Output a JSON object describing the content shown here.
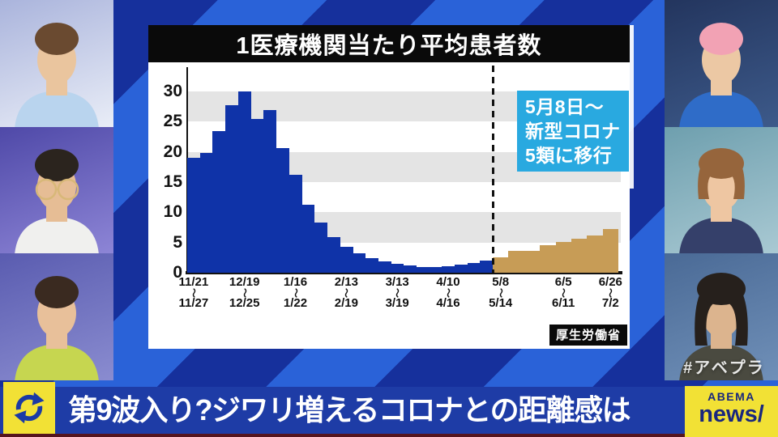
{
  "chart_data": {
    "type": "bar",
    "title": "1医療機関当たり平均患者数",
    "source": "厚生労働省",
    "ylim": [
      0,
      32.4
    ],
    "yticks": [
      0,
      5,
      10,
      15,
      20,
      25,
      30
    ],
    "gray_bands": [
      [
        5,
        10
      ],
      [
        15,
        20
      ],
      [
        25,
        30
      ]
    ],
    "values": [
      19.0,
      19.8,
      23.4,
      27.7,
      30.0,
      25.5,
      26.9,
      20.6,
      16.2,
      11.2,
      8.3,
      5.9,
      4.3,
      3.2,
      2.4,
      1.9,
      1.5,
      1.2,
      1.0,
      1.0,
      1.1,
      1.3,
      1.6,
      2.0,
      2.6,
      3.6,
      3.6,
      4.6,
      5.1,
      5.6,
      6.1,
      7.2
    ],
    "split_index": 24,
    "colors": {
      "before_may8": "#0f33a8",
      "after_may8": "#c79c56"
    },
    "x_ticks": [
      {
        "index": 0,
        "top": "11/21",
        "bottom": "11/27"
      },
      {
        "index": 4,
        "top": "12/19",
        "bottom": "12/25"
      },
      {
        "index": 8,
        "top": "1/16",
        "bottom": "1/22"
      },
      {
        "index": 12,
        "top": "2/13",
        "bottom": "2/19"
      },
      {
        "index": 16,
        "top": "3/13",
        "bottom": "3/19"
      },
      {
        "index": 20,
        "top": "4/10",
        "bottom": "4/16"
      },
      {
        "index": 24,
        "top": "5/8",
        "bottom": "5/14"
      },
      {
        "index": 28,
        "top": "6/5",
        "bottom": "6/11"
      },
      {
        "index": 31,
        "top": "6/26",
        "bottom": "7/2"
      }
    ],
    "tick_connector": "〜",
    "annotation": {
      "lines": [
        "5月8日〜",
        "新型コロナ",
        "5類に移行"
      ],
      "bg": "#29a9e0"
    },
    "divider_style": "dashed-vertical-line-at-5/8"
  },
  "ticker": {
    "headline": "第9波入り?ジワリ増えるコロナとの距離感は"
  },
  "logo": {
    "line1": "ABEMA",
    "line2": "news/"
  },
  "hashtag": "#アベプラ",
  "background": {
    "stripe_bright": "#2a62d8",
    "stripe_dark": "#16309c"
  },
  "panelists": [
    {
      "side": "left",
      "slot": "top",
      "bg1": "#aab4dc",
      "bg2": "#e9edf7",
      "hair": "#6a4a30",
      "top": "#b9d4ee",
      "skin": "#eac59e",
      "style": "short",
      "glasses": false
    },
    {
      "side": "left",
      "slot": "middle",
      "bg1": "#4f49a8",
      "bg2": "#8d85d6",
      "hair": "#2b241e",
      "top": "#f0f0ee",
      "skin": "#e6bd95",
      "style": "short",
      "glasses": true
    },
    {
      "side": "left",
      "slot": "bottom",
      "bg1": "#5a5cb0",
      "bg2": "#8a8cd0",
      "hair": "#3a2a20",
      "top": "#c6d650",
      "skin": "#e8c09a",
      "style": "short",
      "glasses": false
    },
    {
      "side": "right",
      "slot": "top",
      "bg1": "#23355e",
      "bg2": "#3d5a8a",
      "hair": "#f2a2b4",
      "top": "#2f6cc8",
      "skin": "#ecc8a4",
      "style": "short",
      "glasses": false
    },
    {
      "side": "right",
      "slot": "middle",
      "bg1": "#6e9fae",
      "bg2": "#a9c9d3",
      "hair": "#96653c",
      "top": "#35406a",
      "skin": "#eec6a2",
      "style": "bob",
      "glasses": false
    },
    {
      "side": "right",
      "slot": "bottom",
      "bg1": "#4a6a96",
      "bg2": "#7090b8",
      "hair": "#26201c",
      "top": "#4a4a40",
      "skin": "#dcb48e",
      "style": "long",
      "glasses": false
    }
  ]
}
